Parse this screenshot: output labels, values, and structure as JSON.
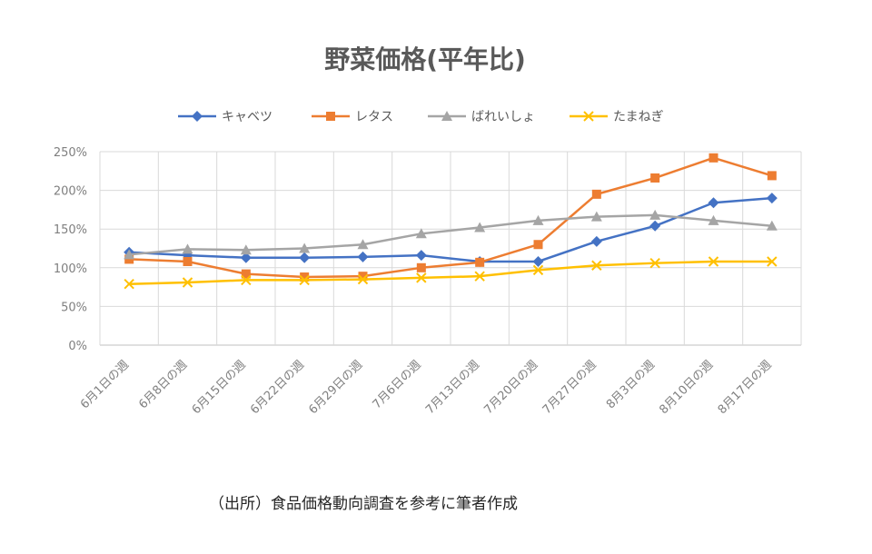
{
  "chart_data": {
    "type": "line",
    "title": "野菜価格(平年比)",
    "xlabel": "",
    "ylabel": "",
    "ylim": [
      0,
      250
    ],
    "y_ticks": [
      0,
      50,
      100,
      150,
      200,
      250
    ],
    "y_tick_labels": [
      "0%",
      "50%",
      "100%",
      "150%",
      "200%",
      "250%"
    ],
    "grid": true,
    "legend_position": "top",
    "categories": [
      "6月1日の週",
      "6月8日の週",
      "6月15日の週",
      "6月22日の週",
      "6月29日の週",
      "7月6日の週",
      "7月13日の週",
      "7月20日の週",
      "7月27日の週",
      "8月3日の週",
      "8月10日の週",
      "8月17日の週"
    ],
    "series": [
      {
        "name": "キャベツ",
        "color": "#4472c4",
        "marker": "diamond",
        "values": [
          120,
          116,
          113,
          113,
          114,
          116,
          108,
          108,
          134,
          154,
          184,
          190
        ]
      },
      {
        "name": "レタス",
        "color": "#ed7d31",
        "marker": "square",
        "values": [
          111,
          108,
          92,
          88,
          89,
          100,
          107,
          130,
          195,
          216,
          242,
          219
        ]
      },
      {
        "name": "ばれいしょ",
        "color": "#a5a5a5",
        "marker": "triangle",
        "values": [
          117,
          124,
          123,
          125,
          130,
          144,
          152,
          161,
          166,
          168,
          161,
          154
        ]
      },
      {
        "name": "たまねぎ",
        "color": "#ffc000",
        "marker": "x",
        "values": [
          79,
          81,
          84,
          84,
          85,
          87,
          89,
          97,
          103,
          106,
          108,
          108
        ]
      }
    ]
  },
  "source_note": "（出所）食品価格動向調査を参考に筆者作成"
}
